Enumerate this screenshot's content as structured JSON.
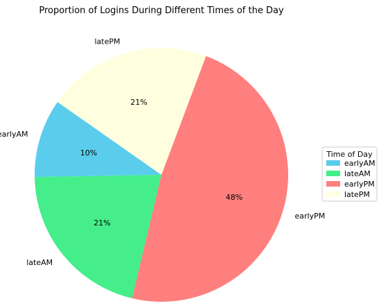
{
  "chart_data": {
    "type": "pie",
    "title": "Proportion of Logins During Different Times of the Day",
    "categories": [
      "earlyAM",
      "lateAM",
      "earlyPM",
      "latePM"
    ],
    "values": [
      10,
      21,
      48,
      21
    ],
    "percent_labels": [
      "10%",
      "21%",
      "48%",
      "21%"
    ],
    "colors": [
      "#5bcdec",
      "#45ee8a",
      "#ff7f7f",
      "#ffffe0"
    ],
    "start_angle_deg": 145,
    "direction": "counterclockwise",
    "legend": {
      "title": "Time of Day",
      "placement": "center-right",
      "entries": [
        "earlyAM",
        "lateAM",
        "earlyPM",
        "latePM"
      ]
    }
  }
}
